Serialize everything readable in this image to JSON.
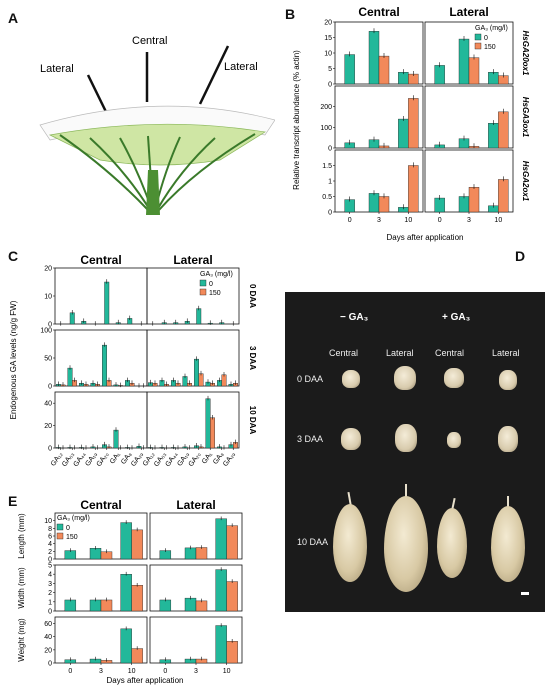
{
  "panels": {
    "A": {
      "letter": "A",
      "labels": {
        "central": "Central",
        "lateral_left": "Lateral",
        "lateral_right": "Lateral"
      }
    },
    "B": {
      "letter": "B",
      "col_titles": [
        "Central",
        "Lateral"
      ],
      "ylabel": "Relative transcript abundance (% actin)",
      "xlabel": "Days after application",
      "legend_title": "GA₃ (mg/l)",
      "legend": [
        "0",
        "150"
      ],
      "row_genes": [
        "HsGA20ox1",
        "HsGA3ox1",
        "HsGA2ox1"
      ],
      "days": [
        "0",
        "3",
        "10"
      ]
    },
    "C": {
      "letter": "C",
      "col_titles": [
        "Central",
        "Lateral"
      ],
      "ylabel": "Endogenous GA levels (ng/g FW)",
      "legend_title": "GA₃ (mg/l)",
      "legend": [
        "0",
        "150"
      ],
      "row_labels": [
        "0 DAA",
        "3 DAA",
        "10 DAA"
      ],
      "ga_labels": [
        "GA₁₂",
        "GA₅₃",
        "GA₄₄",
        "GA₁₉",
        "GA₂₀",
        "GA₁",
        "GA₈",
        "GA₂₉"
      ]
    },
    "D": {
      "letter": "D",
      "col_heads": [
        "− GA₃",
        "+ GA₃"
      ],
      "sub_heads": [
        "Central",
        "Lateral",
        "Central",
        "Lateral"
      ],
      "row_labels": [
        "0 DAA",
        "3 DAA",
        "10 DAA"
      ]
    },
    "E": {
      "letter": "E",
      "col_titles": [
        "Central",
        "Lateral"
      ],
      "legend_title": "GA₃ (mg/l)",
      "legend": [
        "0",
        "150"
      ],
      "row_labels": [
        "Length (mm)",
        "Width (mm)",
        "Weight (mg)"
      ],
      "xlabel": "Days after application",
      "days": [
        "0",
        "3",
        "10"
      ]
    }
  },
  "colors": {
    "control": "#22b89a",
    "treated": "#f2895a"
  },
  "chart_data": [
    {
      "id": "B-HsGA20ox1",
      "type": "bar",
      "categories": [
        "0",
        "3",
        "10"
      ],
      "ylim": [
        0,
        20
      ],
      "yticks": [
        0,
        5,
        10,
        15,
        20
      ],
      "central": {
        "c": [
          9.5,
          17,
          3.8
        ],
        "t": [
          null,
          9,
          3.2
        ]
      },
      "lateral": {
        "c": [
          6,
          14.5,
          3.8
        ],
        "t": [
          null,
          8.5,
          2.7
        ]
      }
    },
    {
      "id": "B-HsGA3ox1",
      "type": "bar",
      "categories": [
        "0",
        "3",
        "10"
      ],
      "ylim": [
        0,
        300
      ],
      "yticks": [
        0,
        100,
        200
      ],
      "central": {
        "c": [
          25,
          40,
          140
        ],
        "t": [
          null,
          10,
          240
        ]
      },
      "lateral": {
        "c": [
          15,
          45,
          120
        ],
        "t": [
          null,
          8,
          175
        ]
      }
    },
    {
      "id": "B-HsGA2ox1",
      "type": "bar",
      "categories": [
        "0",
        "3",
        "10"
      ],
      "ylim": [
        0,
        2
      ],
      "yticks": [
        0,
        0.5,
        1.0,
        1.5
      ],
      "central": {
        "c": [
          0.4,
          0.6,
          0.15
        ],
        "t": [
          null,
          0.5,
          1.5
        ]
      },
      "lateral": {
        "c": [
          0.45,
          0.5,
          0.2
        ],
        "t": [
          null,
          0.8,
          1.05
        ]
      }
    },
    {
      "id": "C-0DAA",
      "type": "bar",
      "categories": [
        "GA₁₂",
        "GA₅₃",
        "GA₄₄",
        "GA₁₉",
        "GA₂₀",
        "GA₁",
        "GA₈",
        "GA₂₉"
      ],
      "ylim": [
        0,
        20
      ],
      "yticks": [
        0,
        10,
        20
      ],
      "central": {
        "c": [
          0,
          4,
          1,
          0,
          15,
          0.5,
          2,
          0
        ]
      },
      "lateral": {
        "c": [
          0,
          0.5,
          0.5,
          1,
          5.5,
          0.3,
          0.5,
          0
        ]
      }
    },
    {
      "id": "C-3DAA",
      "type": "bar",
      "categories": [
        "GA₁₂",
        "GA₅₃",
        "GA₄₄",
        "GA₁₉",
        "GA₂₀",
        "GA₁",
        "GA₈",
        "GA₂₉"
      ],
      "ylim": [
        0,
        100
      ],
      "yticks": [
        0,
        50,
        100
      ],
      "central": {
        "c": [
          3,
          32,
          5,
          5,
          73,
          2,
          10,
          0
        ],
        "t": [
          2,
          10,
          3,
          3,
          10,
          1,
          5,
          0
        ]
      },
      "lateral": {
        "c": [
          6,
          10,
          10,
          17,
          48,
          7,
          10,
          3
        ],
        "t": [
          5,
          3,
          5,
          5,
          22,
          5,
          20,
          5
        ]
      }
    },
    {
      "id": "C-10DAA",
      "type": "bar",
      "categories": [
        "GA₁₂",
        "GA₅₃",
        "GA₄₄",
        "GA₁₉",
        "GA₂₀",
        "GA₁",
        "GA₈",
        "GA₂₉"
      ],
      "ylim": [
        0,
        50
      ],
      "yticks": [
        0,
        20,
        40
      ],
      "central": {
        "c": [
          0.5,
          0.5,
          0.5,
          1,
          3,
          16,
          0.5,
          1.5
        ],
        "t": [
          0,
          0,
          0,
          0,
          1,
          0,
          0,
          0
        ]
      },
      "lateral": {
        "c": [
          0.5,
          0.5,
          0.5,
          1,
          2,
          44,
          1,
          3
        ],
        "t": [
          0,
          0,
          0,
          0,
          1,
          27,
          0,
          5
        ]
      }
    },
    {
      "id": "E-Length",
      "type": "bar",
      "categories": [
        "0",
        "3",
        "10"
      ],
      "ylim": [
        0,
        12
      ],
      "yticks": [
        0,
        2,
        4,
        6,
        8,
        10
      ],
      "central": {
        "c": [
          2.2,
          2.8,
          9.5
        ],
        "t": [
          null,
          1.9,
          7.6
        ]
      },
      "lateral": {
        "c": [
          2.2,
          2.9,
          10.5
        ],
        "t": [
          null,
          3,
          8.7
        ]
      }
    },
    {
      "id": "E-Width",
      "type": "bar",
      "categories": [
        "0",
        "3",
        "10"
      ],
      "ylim": [
        0,
        5
      ],
      "yticks": [
        0,
        1,
        2,
        3,
        4,
        5
      ],
      "central": {
        "c": [
          1.2,
          1.2,
          4
        ],
        "t": [
          null,
          1.2,
          2.8
        ]
      },
      "lateral": {
        "c": [
          1.2,
          1.4,
          4.5
        ],
        "t": [
          null,
          1.1,
          3.2
        ]
      }
    },
    {
      "id": "E-Weight",
      "type": "bar",
      "categories": [
        "0",
        "3",
        "10"
      ],
      "ylim": [
        0,
        70
      ],
      "yticks": [
        0,
        20,
        40,
        60
      ],
      "central": {
        "c": [
          5,
          6,
          52
        ],
        "t": [
          null,
          4,
          22
        ]
      },
      "lateral": {
        "c": [
          5,
          6,
          57
        ],
        "t": [
          null,
          6,
          33
        ]
      }
    }
  ]
}
